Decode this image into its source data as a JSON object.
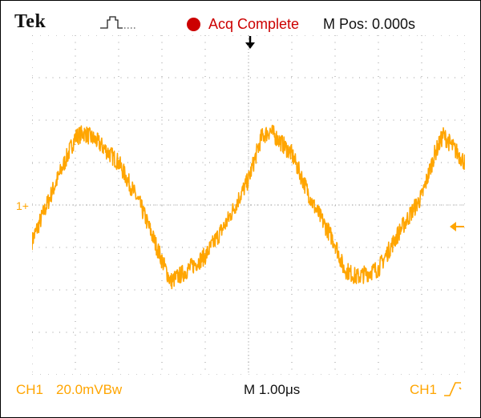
{
  "header": {
    "brand": "Tek",
    "trigger_icon": "pulse-trigger-icon",
    "status": "Acq Complete",
    "m_pos": "M Pos: 0.000s"
  },
  "colors": {
    "trace": "#FFA500",
    "status_dot": "#CC0000",
    "status_text": "#CC0000",
    "grid_dot": "#9A9A9A",
    "border": "#000000"
  },
  "display": {
    "channel_marker": "1+",
    "trigger_marker": "trigger-position-arrow-icon",
    "trigger_level": "trigger-level-arrow-icon",
    "grid": {
      "divisions_x": 10,
      "divisions_y": 8
    }
  },
  "footer": {
    "channel": "CH1",
    "scale": "20.0mVBw",
    "timebase": "M 1.00μs",
    "trigger_channel": "CH1",
    "trigger_slope_icon": "rising-edge-icon"
  },
  "chart_data": {
    "type": "line",
    "title": "",
    "xlabel": "",
    "ylabel": "",
    "series": [
      {
        "x": [
          0.0,
          0.5,
          1.0,
          1.2,
          1.5,
          2.0,
          2.5,
          3.0,
          3.2,
          3.5,
          4.0,
          4.5,
          5.0,
          5.3,
          5.5,
          6.0,
          6.5,
          7.0,
          7.2,
          7.5,
          8.0,
          8.5,
          9.0,
          9.3,
          9.5,
          10.0
        ],
        "y": [
          -0.85,
          0.4,
          1.6,
          1.7,
          1.5,
          1.0,
          0.0,
          -1.3,
          -1.8,
          -1.6,
          -1.2,
          -0.4,
          0.6,
          1.6,
          1.75,
          1.2,
          0.0,
          -0.9,
          -1.5,
          -1.7,
          -1.5,
          -0.6,
          0.2,
          1.2,
          1.65,
          1.0
        ]
      }
    ],
    "xlim": [
      0,
      10
    ],
    "ylim": [
      -4,
      4
    ],
    "grid": true,
    "legend": "none"
  }
}
